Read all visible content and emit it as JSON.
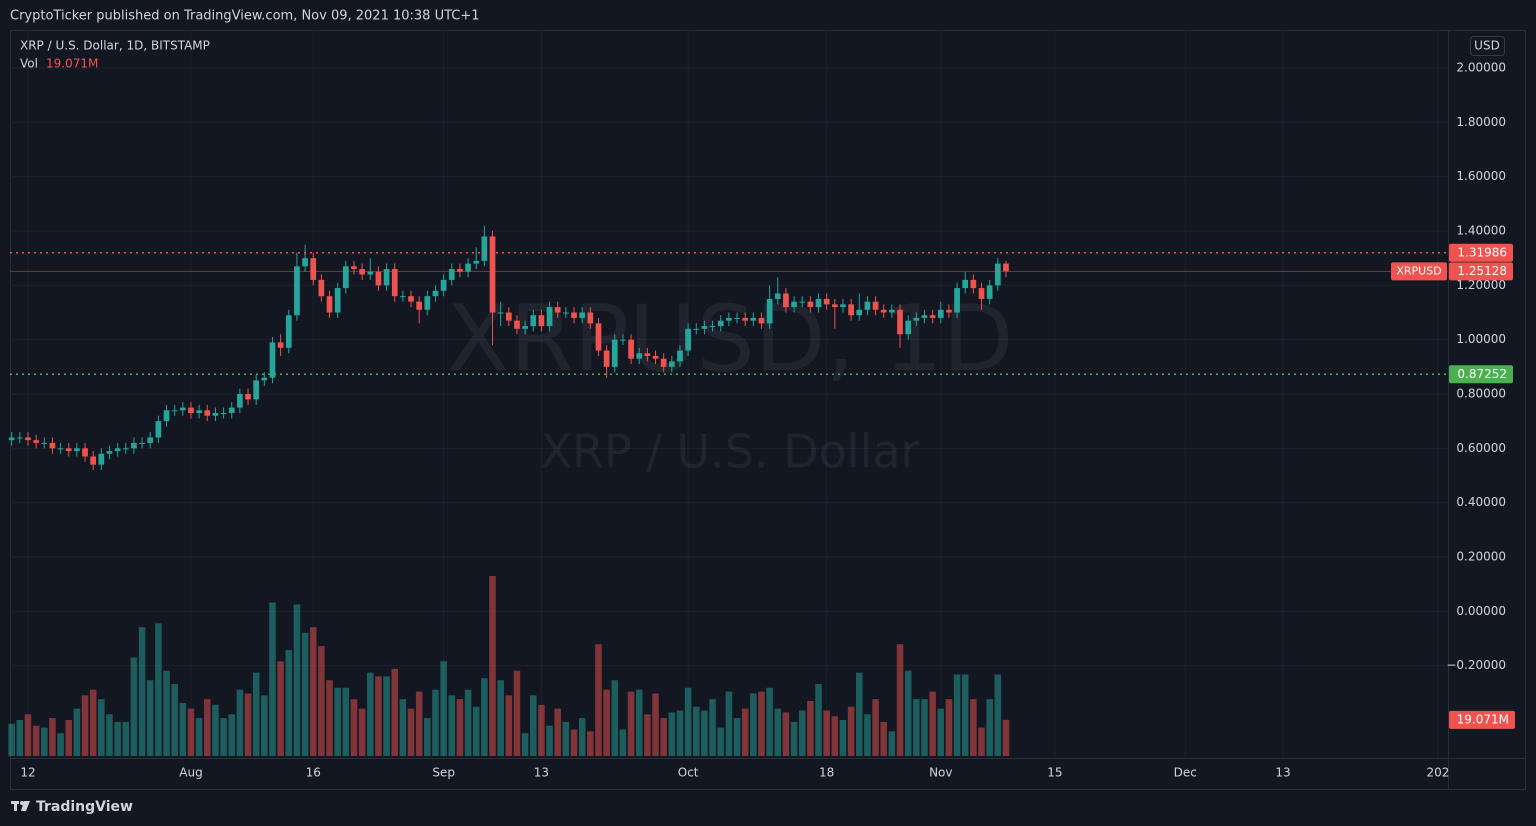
{
  "header": {
    "text": "CryptoTicker published on TradingView.com, Nov 09, 2021 10:38 UTC+1"
  },
  "chart_data": {
    "type": "candlestick",
    "title": "XRP / U.S. Dollar, 1D, BITSTAMP",
    "watermark": [
      "XRPUSD, 1D",
      "XRP / U.S. Dollar"
    ],
    "currency": "USD",
    "categories": [
      null,
      null,
      "12",
      null,
      null,
      null,
      null,
      null,
      null,
      null,
      null,
      null,
      null,
      null,
      null,
      null,
      null,
      null,
      null,
      null,
      null,
      null,
      "Aug",
      null,
      null,
      null,
      null,
      null,
      null,
      null,
      null,
      null,
      null,
      null,
      null,
      null,
      null,
      "16",
      null,
      null,
      null,
      null,
      null,
      null,
      null,
      null,
      null,
      null,
      null,
      null,
      null,
      null,
      null,
      "Sep",
      null,
      null,
      null,
      null,
      null,
      null,
      null,
      null,
      null,
      null,
      null,
      "13",
      null,
      null,
      null,
      null,
      null,
      null,
      null,
      null,
      null,
      null,
      null,
      null,
      null,
      null,
      null,
      null,
      null,
      "Oct",
      null,
      null,
      null,
      null,
      null,
      null,
      null,
      null,
      null,
      null,
      null,
      null,
      null,
      null,
      null,
      null,
      "18",
      null,
      null,
      null,
      null,
      null,
      null,
      null,
      null,
      null,
      null,
      null,
      null,
      null,
      "Nov",
      null,
      null,
      null,
      null,
      null,
      null,
      null,
      null,
      null,
      null,
      null,
      null,
      null,
      "15",
      null,
      null,
      null,
      null,
      null,
      null,
      null,
      null,
      null,
      null,
      null,
      null,
      null,
      null,
      null,
      "Dec",
      null,
      null,
      null,
      null,
      null,
      null,
      null,
      null,
      null,
      null,
      null,
      "13",
      null,
      null,
      null,
      null,
      null,
      null,
      null,
      null,
      null,
      null,
      null,
      null,
      null,
      null,
      null,
      null,
      null,
      null,
      "202"
    ],
    "open": [
      0.63,
      0.64,
      0.64,
      0.63,
      0.62,
      0.62,
      0.6,
      0.6,
      0.59,
      0.6,
      0.57,
      0.54,
      0.58,
      0.59,
      0.6,
      0.6,
      0.62,
      0.62,
      0.64,
      0.7,
      0.74,
      0.74,
      0.75,
      0.73,
      0.74,
      0.72,
      0.73,
      0.73,
      0.75,
      0.8,
      0.78,
      0.85,
      0.86,
      0.99,
      0.97,
      1.09,
      1.27,
      1.3,
      1.22,
      1.16,
      1.1,
      1.19,
      1.27,
      1.26,
      1.24,
      1.25,
      1.2,
      1.26,
      1.16,
      1.16,
      1.14,
      1.11,
      1.16,
      1.18,
      1.22,
      1.26,
      1.25,
      1.28,
      1.29,
      1.38,
      1.1,
      1.1,
      1.07,
      1.04,
      1.05,
      1.09,
      1.05,
      1.12,
      1.1,
      1.1,
      1.08,
      1.1,
      1.06,
      0.96,
      0.9,
      1.0,
      1.0,
      0.93,
      0.95,
      0.94,
      0.93,
      0.9,
      0.92,
      0.96,
      1.04,
      1.04,
      1.05,
      1.05,
      1.07,
      1.08,
      1.08,
      1.07,
      1.08,
      1.06,
      1.15,
      1.17,
      1.12,
      1.14,
      1.14,
      1.12,
      1.15,
      1.13,
      1.12,
      1.13,
      1.09,
      1.11,
      1.14,
      1.11,
      1.1,
      1.11,
      1.02,
      1.07,
      1.08,
      1.09,
      1.08,
      1.11,
      1.1,
      1.19,
      1.22,
      1.19,
      1.15,
      1.2,
      1.28,
      null,
      null,
      null,
      null,
      null,
      null,
      null,
      null,
      null,
      null,
      null,
      null,
      null,
      null,
      null,
      null,
      null,
      null,
      null,
      null,
      null,
      null,
      null,
      null,
      null,
      null,
      null,
      null,
      null,
      null,
      null,
      null,
      null,
      null,
      null,
      null,
      null,
      null,
      null,
      null,
      null,
      null,
      null,
      null,
      null,
      null,
      null,
      null,
      null,
      null,
      null,
      null,
      null
    ],
    "high": [
      0.66,
      0.66,
      0.66,
      0.65,
      0.64,
      0.64,
      0.62,
      0.62,
      0.62,
      0.62,
      0.59,
      0.6,
      0.61,
      0.62,
      0.62,
      0.64,
      0.64,
      0.66,
      0.72,
      0.76,
      0.76,
      0.77,
      0.77,
      0.76,
      0.76,
      0.75,
      0.75,
      0.77,
      0.82,
      0.82,
      0.87,
      0.88,
      1.01,
      1.02,
      1.11,
      1.32,
      1.35,
      1.32,
      1.24,
      1.18,
      1.21,
      1.29,
      1.29,
      1.28,
      1.3,
      1.27,
      1.28,
      1.28,
      1.18,
      1.18,
      1.16,
      1.18,
      1.2,
      1.24,
      1.28,
      1.28,
      1.3,
      1.34,
      1.42,
      1.4,
      1.14,
      1.12,
      1.09,
      1.07,
      1.11,
      1.11,
      1.14,
      1.14,
      1.12,
      1.12,
      1.12,
      1.12,
      1.08,
      0.98,
      1.02,
      1.02,
      1.02,
      0.97,
      0.97,
      0.96,
      0.95,
      0.94,
      0.98,
      1.06,
      1.06,
      1.07,
      1.07,
      1.09,
      1.1,
      1.1,
      1.1,
      1.1,
      1.1,
      1.2,
      1.23,
      1.19,
      1.16,
      1.16,
      1.16,
      1.17,
      1.17,
      1.15,
      1.15,
      1.15,
      1.17,
      1.16,
      1.16,
      1.13,
      1.13,
      1.13,
      1.09,
      1.1,
      1.11,
      1.11,
      1.14,
      1.13,
      1.21,
      1.25,
      1.24,
      1.21,
      1.22,
      1.3,
      1.29,
      null,
      null,
      null,
      null,
      null,
      null,
      null,
      null,
      null,
      null,
      null,
      null,
      null,
      null,
      null,
      null,
      null,
      null,
      null,
      null,
      null,
      null,
      null,
      null,
      null,
      null,
      null,
      null,
      null,
      null,
      null,
      null,
      null,
      null,
      null,
      null,
      null,
      null,
      null,
      null,
      null,
      null,
      null,
      null,
      null,
      null,
      null,
      null,
      null,
      null,
      null,
      null,
      null
    ],
    "low": [
      0.61,
      0.62,
      0.61,
      0.6,
      0.6,
      0.58,
      0.58,
      0.57,
      0.57,
      0.55,
      0.52,
      0.52,
      0.56,
      0.57,
      0.58,
      0.58,
      0.6,
      0.6,
      0.62,
      0.68,
      0.72,
      0.72,
      0.71,
      0.71,
      0.7,
      0.7,
      0.71,
      0.71,
      0.73,
      0.76,
      0.76,
      0.83,
      0.84,
      0.94,
      0.95,
      1.07,
      1.25,
      1.2,
      1.14,
      1.08,
      1.08,
      1.17,
      1.24,
      1.22,
      1.22,
      1.18,
      1.18,
      1.14,
      1.14,
      1.12,
      1.06,
      1.09,
      1.14,
      1.16,
      1.2,
      1.23,
      1.23,
      1.26,
      1.27,
      0.98,
      1.05,
      1.05,
      1.02,
      1.02,
      1.03,
      1.03,
      1.03,
      1.08,
      1.08,
      1.06,
      1.06,
      1.04,
      0.94,
      0.86,
      0.88,
      0.98,
      0.91,
      0.91,
      0.92,
      0.91,
      0.88,
      0.88,
      0.9,
      0.94,
      1.02,
      1.02,
      1.03,
      1.03,
      1.05,
      1.06,
      1.05,
      1.05,
      1.04,
      1.04,
      1.13,
      1.1,
      1.1,
      1.12,
      1.1,
      1.1,
      1.11,
      1.04,
      1.1,
      1.07,
      1.07,
      1.09,
      1.09,
      1.08,
      1.08,
      0.97,
      1.0,
      1.05,
      1.06,
      1.06,
      1.06,
      1.08,
      1.08,
      1.17,
      1.17,
      1.11,
      1.13,
      1.18,
      1.23,
      null,
      null,
      null,
      null,
      null,
      null,
      null,
      null,
      null,
      null,
      null,
      null,
      null,
      null,
      null,
      null,
      null,
      null,
      null,
      null,
      null,
      null,
      null,
      null,
      null,
      null,
      null,
      null,
      null,
      null,
      null,
      null,
      null,
      null,
      null,
      null,
      null,
      null,
      null,
      null,
      null,
      null,
      null,
      null,
      null,
      null,
      null,
      null,
      null,
      null,
      null,
      null,
      null
    ],
    "close": [
      0.64,
      0.64,
      0.63,
      0.62,
      0.62,
      0.6,
      0.6,
      0.59,
      0.6,
      0.57,
      0.54,
      0.58,
      0.59,
      0.6,
      0.6,
      0.62,
      0.62,
      0.64,
      0.7,
      0.74,
      0.74,
      0.75,
      0.73,
      0.74,
      0.72,
      0.73,
      0.73,
      0.75,
      0.8,
      0.78,
      0.85,
      0.86,
      0.99,
      0.97,
      1.09,
      1.27,
      1.3,
      1.22,
      1.16,
      1.1,
      1.19,
      1.27,
      1.26,
      1.24,
      1.25,
      1.2,
      1.26,
      1.16,
      1.16,
      1.14,
      1.11,
      1.16,
      1.18,
      1.22,
      1.26,
      1.25,
      1.28,
      1.29,
      1.38,
      1.1,
      1.1,
      1.07,
      1.04,
      1.05,
      1.09,
      1.05,
      1.12,
      1.1,
      1.1,
      1.08,
      1.1,
      1.06,
      0.96,
      0.9,
      1.0,
      1.0,
      0.93,
      0.95,
      0.94,
      0.93,
      0.9,
      0.92,
      0.96,
      1.04,
      1.04,
      1.05,
      1.05,
      1.07,
      1.08,
      1.08,
      1.07,
      1.08,
      1.06,
      1.15,
      1.17,
      1.12,
      1.14,
      1.14,
      1.12,
      1.15,
      1.13,
      1.12,
      1.13,
      1.09,
      1.11,
      1.14,
      1.11,
      1.1,
      1.11,
      1.02,
      1.07,
      1.08,
      1.09,
      1.08,
      1.11,
      1.1,
      1.19,
      1.22,
      1.19,
      1.15,
      1.2,
      1.28,
      1.25128,
      null,
      null,
      null,
      null,
      null,
      null,
      null,
      null,
      null,
      null,
      null,
      null,
      null,
      null,
      null,
      null,
      null,
      null,
      null,
      null,
      null,
      null,
      null,
      null,
      null,
      null,
      null,
      null,
      null,
      null,
      null,
      null,
      null,
      null,
      null,
      null,
      null,
      null,
      null,
      null,
      null,
      null,
      null,
      null,
      null,
      null,
      null,
      null,
      null,
      null,
      null,
      null,
      null
    ],
    "up_color": "#26a69a",
    "down_color": "#ef5350",
    "volume": {
      "name": "Vol",
      "value_label": "19.071M",
      "values": [
        17000000,
        19000000,
        22000000,
        16000000,
        15000000,
        20000000,
        12000000,
        19000000,
        25000000,
        32000000,
        35000000,
        30000000,
        22000000,
        18000000,
        18000000,
        52000000,
        68000000,
        40000000,
        70000000,
        45000000,
        38000000,
        28000000,
        25000000,
        20000000,
        30000000,
        27000000,
        20000000,
        22000000,
        35000000,
        33000000,
        44000000,
        32000000,
        81000000,
        50000000,
        56000000,
        80000000,
        65000000,
        68000000,
        58000000,
        40000000,
        36000000,
        36000000,
        30000000,
        25000000,
        44000000,
        42000000,
        42000000,
        46000000,
        30000000,
        25000000,
        34000000,
        20000000,
        35000000,
        50000000,
        32000000,
        30000000,
        35000000,
        26000000,
        41000000,
        95000000,
        40000000,
        32000000,
        45000000,
        12000000,
        32000000,
        27000000,
        16000000,
        25000000,
        18000000,
        14000000,
        20000000,
        13000000,
        59000000,
        35000000,
        40000000,
        14000000,
        34000000,
        35000000,
        22000000,
        33000000,
        20000000,
        23000000,
        24000000,
        36000000,
        26000000,
        24000000,
        30000000,
        15000000,
        34000000,
        20000000,
        25000000,
        33000000,
        34000000,
        36000000,
        25000000,
        23000000,
        18000000,
        24000000,
        29000000,
        38000000,
        24000000,
        21000000,
        19000000,
        26000000,
        44000000,
        22000000,
        30000000,
        18000000,
        13000000,
        59000000,
        45000000,
        30000000,
        30000000,
        34000000,
        25000000,
        30000000,
        43000000,
        43000000,
        30000000,
        15000000,
        30000000,
        43000000,
        19071000,
        null,
        null,
        null,
        null,
        null,
        null,
        null,
        null,
        null,
        null,
        null,
        null,
        null,
        null,
        null,
        null,
        null,
        null,
        null,
        null,
        null,
        null,
        null,
        null,
        null,
        null,
        null,
        null,
        null,
        null,
        null,
        null,
        null,
        null,
        null,
        null,
        null,
        null,
        null,
        null,
        null,
        null,
        null,
        null,
        null,
        null,
        null,
        null,
        null,
        null,
        null,
        null,
        null
      ]
    },
    "ylim": [
      -0.54,
      2.14
    ],
    "yticks": [
      {
        "value": -0.2,
        "label": "−0.20000"
      },
      {
        "value": 0,
        "label": "0.00000"
      },
      {
        "value": 0.2,
        "label": "0.20000"
      },
      {
        "value": 0.4,
        "label": "0.40000"
      },
      {
        "value": 0.6,
        "label": "0.60000"
      },
      {
        "value": 0.8,
        "label": "0.80000"
      },
      {
        "value": 1,
        "label": "1.00000"
      },
      {
        "value": 1.2,
        "label": "1.20000"
      },
      {
        "value": 1.4,
        "label": "1.40000"
      },
      {
        "value": 1.6,
        "label": "1.60000"
      },
      {
        "value": 1.8,
        "label": "1.80000"
      },
      {
        "value": 2,
        "label": "2.00000"
      }
    ],
    "price_lines": [
      {
        "value": 1.31986,
        "color": "#ef5350"
      },
      {
        "value": 0.87252,
        "color": "#4caf50"
      }
    ],
    "last_price": {
      "name": "XRPUSD"
    },
    "grid": true
  },
  "footer": {
    "brand": "TradingView"
  }
}
